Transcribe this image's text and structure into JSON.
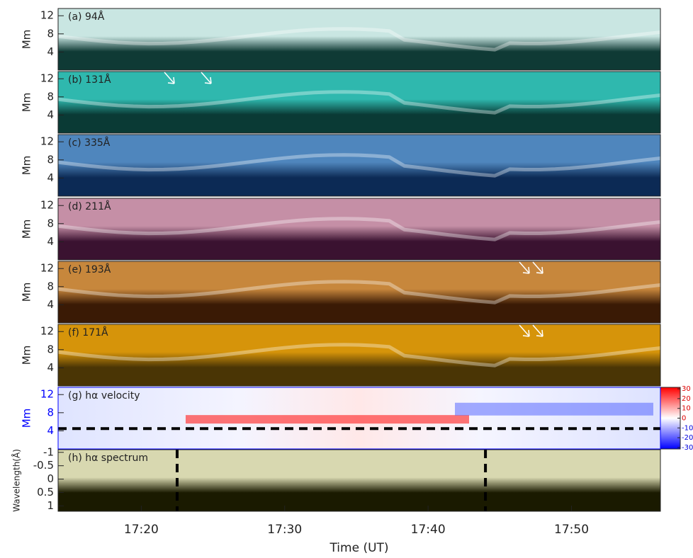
{
  "chart_data": [
    {
      "type": "heatmap",
      "label": "(a) 94Å",
      "ylabel": "Mm",
      "ylim": [
        0,
        13.6
      ],
      "yticks": [
        4,
        8,
        12
      ],
      "colors": [
        "#0f3a35",
        "#c9e6e2"
      ]
    },
    {
      "type": "heatmap",
      "label": "(b) 131Å",
      "ylabel": "Mm",
      "ylim": [
        0,
        13.6
      ],
      "yticks": [
        4,
        8,
        12
      ],
      "colors": [
        "#0a3a35",
        "#2fb8ae"
      ]
    },
    {
      "type": "heatmap",
      "label": "(c) 335Å",
      "ylabel": "Mm",
      "ylim": [
        0,
        13.6
      ],
      "yticks": [
        4,
        8,
        12
      ],
      "colors": [
        "#0c2a55",
        "#4f86bd"
      ]
    },
    {
      "type": "heatmap",
      "label": "(d) 211Å",
      "ylabel": "Mm",
      "ylim": [
        0,
        13.6
      ],
      "yticks": [
        4,
        8,
        12
      ],
      "colors": [
        "#3a1230",
        "#c58fa6"
      ]
    },
    {
      "type": "heatmap",
      "label": "(e) 193Å",
      "ylabel": "Mm",
      "ylim": [
        0,
        13.6
      ],
      "yticks": [
        4,
        8,
        12
      ],
      "colors": [
        "#3a1a05",
        "#c7873c"
      ]
    },
    {
      "type": "heatmap",
      "label": "(f) 171Å",
      "ylabel": "Mm",
      "ylim": [
        0,
        13.6
      ],
      "yticks": [
        4,
        8,
        12
      ],
      "colors": [
        "#4a3505",
        "#d6940a"
      ]
    },
    {
      "type": "heatmap",
      "label": "(g) hα velocity",
      "ylabel": "Mm",
      "ylim": [
        0,
        13.6
      ],
      "yticks": [
        4,
        8,
        12
      ],
      "colors": [
        "#3040ff",
        "#ff3030"
      ],
      "hline": 4.5,
      "clim": [
        -31.5,
        31.5
      ],
      "cticks": [
        30,
        20,
        10,
        0,
        -10,
        -20,
        -30
      ]
    },
    {
      "type": "heatmap",
      "label": "(h) hα spectrum",
      "ylabel": "Wavelength(Å)",
      "ylim": [
        1.2,
        -1.1
      ],
      "yticks": [
        -1,
        -0.5,
        0,
        0.5,
        1
      ],
      "colors": [
        "#1a1a00",
        "#d8d8b0"
      ],
      "vlines": [
        22.5,
        44
      ],
      "xlim": [
        14.2,
        56.2
      ],
      "xticks": [
        {
          "value": 20,
          "label": "17:20"
        },
        {
          "value": 30,
          "label": "17:30"
        },
        {
          "value": 40,
          "label": "17:40"
        },
        {
          "value": 50,
          "label": "17:50"
        }
      ],
      "xlabel": "Time (UT)"
    }
  ]
}
